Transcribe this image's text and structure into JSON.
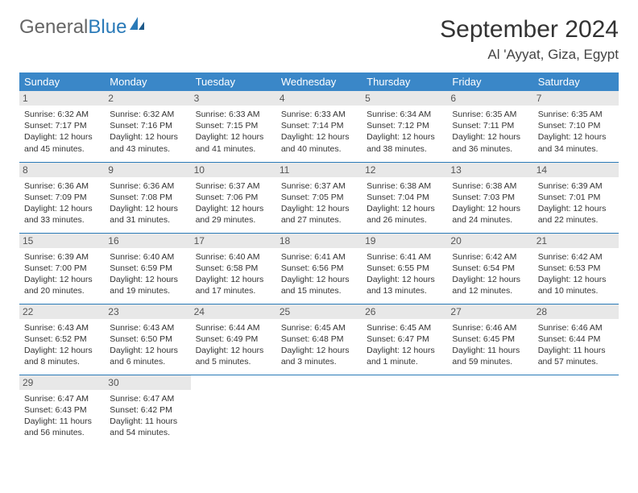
{
  "logo": {
    "part1": "General",
    "part2": "Blue"
  },
  "title": "September 2024",
  "location": "Al 'Ayyat, Giza, Egypt",
  "colors": {
    "header_bg": "#3a87c8",
    "border": "#2a7ab8",
    "daynum_bg": "#e8e8e8",
    "logo_blue": "#2a7ab8"
  },
  "weekdays": [
    "Sunday",
    "Monday",
    "Tuesday",
    "Wednesday",
    "Thursday",
    "Friday",
    "Saturday"
  ],
  "weeks": [
    [
      {
        "n": "1",
        "sr": "Sunrise: 6:32 AM",
        "ss": "Sunset: 7:17 PM",
        "dl": "Daylight: 12 hours and 45 minutes."
      },
      {
        "n": "2",
        "sr": "Sunrise: 6:32 AM",
        "ss": "Sunset: 7:16 PM",
        "dl": "Daylight: 12 hours and 43 minutes."
      },
      {
        "n": "3",
        "sr": "Sunrise: 6:33 AM",
        "ss": "Sunset: 7:15 PM",
        "dl": "Daylight: 12 hours and 41 minutes."
      },
      {
        "n": "4",
        "sr": "Sunrise: 6:33 AM",
        "ss": "Sunset: 7:14 PM",
        "dl": "Daylight: 12 hours and 40 minutes."
      },
      {
        "n": "5",
        "sr": "Sunrise: 6:34 AM",
        "ss": "Sunset: 7:12 PM",
        "dl": "Daylight: 12 hours and 38 minutes."
      },
      {
        "n": "6",
        "sr": "Sunrise: 6:35 AM",
        "ss": "Sunset: 7:11 PM",
        "dl": "Daylight: 12 hours and 36 minutes."
      },
      {
        "n": "7",
        "sr": "Sunrise: 6:35 AM",
        "ss": "Sunset: 7:10 PM",
        "dl": "Daylight: 12 hours and 34 minutes."
      }
    ],
    [
      {
        "n": "8",
        "sr": "Sunrise: 6:36 AM",
        "ss": "Sunset: 7:09 PM",
        "dl": "Daylight: 12 hours and 33 minutes."
      },
      {
        "n": "9",
        "sr": "Sunrise: 6:36 AM",
        "ss": "Sunset: 7:08 PM",
        "dl": "Daylight: 12 hours and 31 minutes."
      },
      {
        "n": "10",
        "sr": "Sunrise: 6:37 AM",
        "ss": "Sunset: 7:06 PM",
        "dl": "Daylight: 12 hours and 29 minutes."
      },
      {
        "n": "11",
        "sr": "Sunrise: 6:37 AM",
        "ss": "Sunset: 7:05 PM",
        "dl": "Daylight: 12 hours and 27 minutes."
      },
      {
        "n": "12",
        "sr": "Sunrise: 6:38 AM",
        "ss": "Sunset: 7:04 PM",
        "dl": "Daylight: 12 hours and 26 minutes."
      },
      {
        "n": "13",
        "sr": "Sunrise: 6:38 AM",
        "ss": "Sunset: 7:03 PM",
        "dl": "Daylight: 12 hours and 24 minutes."
      },
      {
        "n": "14",
        "sr": "Sunrise: 6:39 AM",
        "ss": "Sunset: 7:01 PM",
        "dl": "Daylight: 12 hours and 22 minutes."
      }
    ],
    [
      {
        "n": "15",
        "sr": "Sunrise: 6:39 AM",
        "ss": "Sunset: 7:00 PM",
        "dl": "Daylight: 12 hours and 20 minutes."
      },
      {
        "n": "16",
        "sr": "Sunrise: 6:40 AM",
        "ss": "Sunset: 6:59 PM",
        "dl": "Daylight: 12 hours and 19 minutes."
      },
      {
        "n": "17",
        "sr": "Sunrise: 6:40 AM",
        "ss": "Sunset: 6:58 PM",
        "dl": "Daylight: 12 hours and 17 minutes."
      },
      {
        "n": "18",
        "sr": "Sunrise: 6:41 AM",
        "ss": "Sunset: 6:56 PM",
        "dl": "Daylight: 12 hours and 15 minutes."
      },
      {
        "n": "19",
        "sr": "Sunrise: 6:41 AM",
        "ss": "Sunset: 6:55 PM",
        "dl": "Daylight: 12 hours and 13 minutes."
      },
      {
        "n": "20",
        "sr": "Sunrise: 6:42 AM",
        "ss": "Sunset: 6:54 PM",
        "dl": "Daylight: 12 hours and 12 minutes."
      },
      {
        "n": "21",
        "sr": "Sunrise: 6:42 AM",
        "ss": "Sunset: 6:53 PM",
        "dl": "Daylight: 12 hours and 10 minutes."
      }
    ],
    [
      {
        "n": "22",
        "sr": "Sunrise: 6:43 AM",
        "ss": "Sunset: 6:52 PM",
        "dl": "Daylight: 12 hours and 8 minutes."
      },
      {
        "n": "23",
        "sr": "Sunrise: 6:43 AM",
        "ss": "Sunset: 6:50 PM",
        "dl": "Daylight: 12 hours and 6 minutes."
      },
      {
        "n": "24",
        "sr": "Sunrise: 6:44 AM",
        "ss": "Sunset: 6:49 PM",
        "dl": "Daylight: 12 hours and 5 minutes."
      },
      {
        "n": "25",
        "sr": "Sunrise: 6:45 AM",
        "ss": "Sunset: 6:48 PM",
        "dl": "Daylight: 12 hours and 3 minutes."
      },
      {
        "n": "26",
        "sr": "Sunrise: 6:45 AM",
        "ss": "Sunset: 6:47 PM",
        "dl": "Daylight: 12 hours and 1 minute."
      },
      {
        "n": "27",
        "sr": "Sunrise: 6:46 AM",
        "ss": "Sunset: 6:45 PM",
        "dl": "Daylight: 11 hours and 59 minutes."
      },
      {
        "n": "28",
        "sr": "Sunrise: 6:46 AM",
        "ss": "Sunset: 6:44 PM",
        "dl": "Daylight: 11 hours and 57 minutes."
      }
    ],
    [
      {
        "n": "29",
        "sr": "Sunrise: 6:47 AM",
        "ss": "Sunset: 6:43 PM",
        "dl": "Daylight: 11 hours and 56 minutes."
      },
      {
        "n": "30",
        "sr": "Sunrise: 6:47 AM",
        "ss": "Sunset: 6:42 PM",
        "dl": "Daylight: 11 hours and 54 minutes."
      },
      null,
      null,
      null,
      null,
      null
    ]
  ]
}
